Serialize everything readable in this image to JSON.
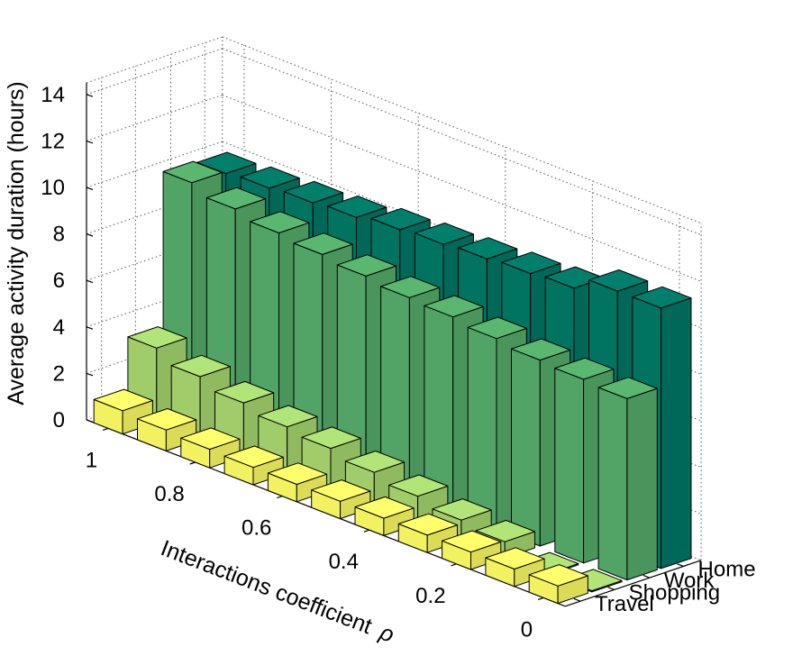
{
  "chart_data": {
    "type": "bar3d",
    "title": "",
    "xlabel": "Interactions coefficient",
    "xlabel_symbol": "ρ",
    "ylabel": "Average activity duration (hours)",
    "x": [
      1,
      0.9,
      0.8,
      0.7,
      0.6,
      0.5,
      0.4,
      0.3,
      0.2,
      0.1,
      0
    ],
    "x_tick_labels": [
      "1",
      "0.8",
      "0.6",
      "0.4",
      "0.2",
      "0"
    ],
    "y_ticks": [
      "0",
      "2",
      "4",
      "6",
      "8",
      "10",
      "12",
      "14"
    ],
    "ylim": [
      0,
      14
    ],
    "categories": [
      "Travel",
      "Shopping",
      "Work",
      "Home"
    ],
    "series": [
      {
        "name": "Travel",
        "color": "#ffff66",
        "values": [
          1.0,
          0.9,
          0.8,
          0.75,
          0.75,
          0.75,
          0.75,
          0.75,
          0.75,
          0.75,
          0.75
        ]
      },
      {
        "name": "Shopping",
        "color": "#a8d870",
        "values": [
          3.2,
          2.7,
          2.3,
          2.0,
          1.8,
          1.5,
          1.2,
          0.9,
          0.7,
          0.05,
          0.05
        ]
      },
      {
        "name": "Work",
        "color": "#55ad6a",
        "values": [
          9.8,
          9.4,
          9.1,
          8.9,
          8.7,
          8.5,
          8.4,
          8.2,
          8.0,
          7.9,
          7.8
        ]
      },
      {
        "name": "Home",
        "color": "#007966",
        "values": [
          9.7,
          9.8,
          9.9,
          10.0,
          10.2,
          10.3,
          10.4,
          10.5,
          10.6,
          11.2,
          11.2
        ]
      }
    ],
    "grid": true
  }
}
